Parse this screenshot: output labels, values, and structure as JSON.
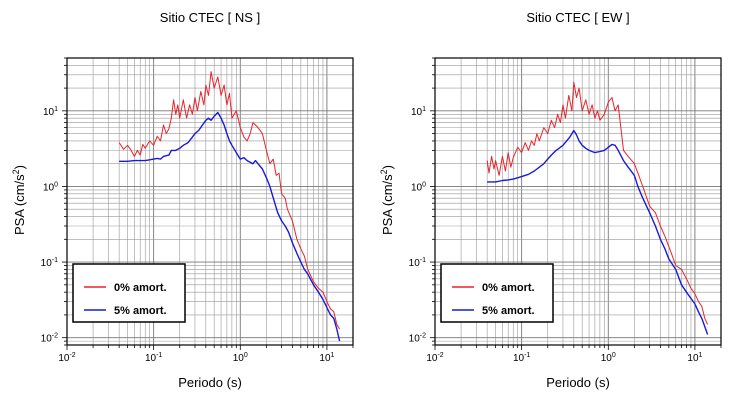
{
  "chart_data": [
    {
      "type": "line",
      "title": "Sitio CTEC [ NS ]",
      "xlabel": "Periodo (s)",
      "ylabel": "PSA (cm/s²)",
      "xscale": "log",
      "yscale": "log",
      "xlim": [
        0.01,
        20
      ],
      "ylim": [
        0.008,
        50
      ],
      "x_ticks": [
        {
          "base": "10",
          "exp": "-2",
          "value": 0.01
        },
        {
          "base": "10",
          "exp": "-1",
          "value": 0.1
        },
        {
          "base": "10",
          "exp": "0",
          "value": 1
        },
        {
          "base": "10",
          "exp": "1",
          "value": 10
        }
      ],
      "y_ticks": [
        {
          "base": "10",
          "exp": "-2",
          "value": 0.01
        },
        {
          "base": "10",
          "exp": "-1",
          "value": 0.1
        },
        {
          "base": "10",
          "exp": "0",
          "value": 1
        },
        {
          "base": "10",
          "exp": "1",
          "value": 10
        }
      ],
      "grid": true,
      "legend_position": "bottom-left",
      "series": [
        {
          "name": "0% amort.",
          "color": "#e8242a",
          "points": [
            [
              0.04,
              3.8
            ],
            [
              0.045,
              3.1
            ],
            [
              0.05,
              3.5
            ],
            [
              0.055,
              3.0
            ],
            [
              0.06,
              2.5
            ],
            [
              0.065,
              3.0
            ],
            [
              0.07,
              2.6
            ],
            [
              0.075,
              3.6
            ],
            [
              0.08,
              3.2
            ],
            [
              0.09,
              4.0
            ],
            [
              0.1,
              3.5
            ],
            [
              0.11,
              4.6
            ],
            [
              0.12,
              4.0
            ],
            [
              0.13,
              6.5
            ],
            [
              0.14,
              5.0
            ],
            [
              0.15,
              5.8
            ],
            [
              0.16,
              8.0
            ],
            [
              0.17,
              14.0
            ],
            [
              0.18,
              9.0
            ],
            [
              0.19,
              12.0
            ],
            [
              0.2,
              8.0
            ],
            [
              0.22,
              14.0
            ],
            [
              0.24,
              8.0
            ],
            [
              0.26,
              12.0
            ],
            [
              0.28,
              9.0
            ],
            [
              0.3,
              15.0
            ],
            [
              0.32,
              10.0
            ],
            [
              0.35,
              18.0
            ],
            [
              0.38,
              12.0
            ],
            [
              0.4,
              22.0
            ],
            [
              0.43,
              16.0
            ],
            [
              0.46,
              33.0
            ],
            [
              0.5,
              20.0
            ],
            [
              0.55,
              28.0
            ],
            [
              0.6,
              16.0
            ],
            [
              0.65,
              22.0
            ],
            [
              0.7,
              12.0
            ],
            [
              0.75,
              17.0
            ],
            [
              0.8,
              8.0
            ],
            [
              0.9,
              10.0
            ],
            [
              1.0,
              6.0
            ],
            [
              1.1,
              4.5
            ],
            [
              1.2,
              4.0
            ],
            [
              1.3,
              5.0
            ],
            [
              1.4,
              7.0
            ],
            [
              1.5,
              6.5
            ],
            [
              1.6,
              6.0
            ],
            [
              1.8,
              5.0
            ],
            [
              2.0,
              3.0
            ],
            [
              2.2,
              2.0
            ],
            [
              2.4,
              2.3
            ],
            [
              2.6,
              1.4
            ],
            [
              2.8,
              1.5
            ],
            [
              3.0,
              0.8
            ],
            [
              3.3,
              0.7
            ],
            [
              3.5,
              0.5
            ],
            [
              4.0,
              0.35
            ],
            [
              4.5,
              0.2
            ],
            [
              5.0,
              0.15
            ],
            [
              5.5,
              0.12
            ],
            [
              6.0,
              0.08
            ],
            [
              7.0,
              0.055
            ],
            [
              8.0,
              0.045
            ],
            [
              9.0,
              0.04
            ],
            [
              10.0,
              0.03
            ],
            [
              11.0,
              0.024
            ],
            [
              12.0,
              0.022
            ],
            [
              13.0,
              0.015
            ],
            [
              14.0,
              0.013
            ]
          ]
        },
        {
          "name": "5% amort.",
          "color": "#1a1ad8",
          "points": [
            [
              0.04,
              2.15
            ],
            [
              0.05,
              2.15
            ],
            [
              0.06,
              2.2
            ],
            [
              0.07,
              2.2
            ],
            [
              0.08,
              2.2
            ],
            [
              0.09,
              2.25
            ],
            [
              0.1,
              2.3
            ],
            [
              0.11,
              2.35
            ],
            [
              0.12,
              2.3
            ],
            [
              0.13,
              2.5
            ],
            [
              0.14,
              2.55
            ],
            [
              0.15,
              2.6
            ],
            [
              0.16,
              3.0
            ],
            [
              0.18,
              3.0
            ],
            [
              0.2,
              3.2
            ],
            [
              0.22,
              3.5
            ],
            [
              0.25,
              3.8
            ],
            [
              0.28,
              4.5
            ],
            [
              0.3,
              5.0
            ],
            [
              0.33,
              5.5
            ],
            [
              0.36,
              6.3
            ],
            [
              0.4,
              7.5
            ],
            [
              0.43,
              8.0
            ],
            [
              0.46,
              7.5
            ],
            [
              0.5,
              8.5
            ],
            [
              0.55,
              9.5
            ],
            [
              0.6,
              8.0
            ],
            [
              0.65,
              6.5
            ],
            [
              0.7,
              5.0
            ],
            [
              0.75,
              4.0
            ],
            [
              0.8,
              3.5
            ],
            [
              0.9,
              2.8
            ],
            [
              1.0,
              2.3
            ],
            [
              1.1,
              2.4
            ],
            [
              1.2,
              2.2
            ],
            [
              1.4,
              2.0
            ],
            [
              1.5,
              2.2
            ],
            [
              1.6,
              2.0
            ],
            [
              1.8,
              1.7
            ],
            [
              2.0,
              1.3
            ],
            [
              2.2,
              1.0
            ],
            [
              2.5,
              0.6
            ],
            [
              2.7,
              0.45
            ],
            [
              3.0,
              0.35
            ],
            [
              3.3,
              0.3
            ],
            [
              3.6,
              0.25
            ],
            [
              4.0,
              0.18
            ],
            [
              4.5,
              0.13
            ],
            [
              5.0,
              0.1
            ],
            [
              5.5,
              0.08
            ],
            [
              6.0,
              0.07
            ],
            [
              7.0,
              0.05
            ],
            [
              8.0,
              0.04
            ],
            [
              9.0,
              0.032
            ],
            [
              10.0,
              0.025
            ],
            [
              11.0,
              0.02
            ],
            [
              12.0,
              0.018
            ],
            [
              13.0,
              0.013
            ],
            [
              14.0,
              0.009
            ]
          ]
        }
      ]
    },
    {
      "type": "line",
      "title": "Sitio CTEC [ EW ]",
      "xlabel": "Periodo (s)",
      "ylabel": "PSA (cm/s²)",
      "xscale": "log",
      "yscale": "log",
      "xlim": [
        0.01,
        20
      ],
      "ylim": [
        0.008,
        50
      ],
      "x_ticks": [
        {
          "base": "10",
          "exp": "-2",
          "value": 0.01
        },
        {
          "base": "10",
          "exp": "-1",
          "value": 0.1
        },
        {
          "base": "10",
          "exp": "0",
          "value": 1
        },
        {
          "base": "10",
          "exp": "1",
          "value": 10
        }
      ],
      "y_ticks": [
        {
          "base": "10",
          "exp": "-2",
          "value": 0.01
        },
        {
          "base": "10",
          "exp": "-1",
          "value": 0.1
        },
        {
          "base": "10",
          "exp": "0",
          "value": 1
        },
        {
          "base": "10",
          "exp": "1",
          "value": 10
        }
      ],
      "grid": true,
      "legend_position": "bottom-left",
      "series": [
        {
          "name": "0% amort.",
          "color": "#e8242a",
          "points": [
            [
              0.04,
              2.2
            ],
            [
              0.042,
              1.5
            ],
            [
              0.045,
              2.5
            ],
            [
              0.048,
              1.7
            ],
            [
              0.05,
              2.2
            ],
            [
              0.055,
              1.4
            ],
            [
              0.06,
              2.5
            ],
            [
              0.065,
              1.6
            ],
            [
              0.07,
              2.8
            ],
            [
              0.075,
              1.8
            ],
            [
              0.08,
              2.4
            ],
            [
              0.09,
              3.3
            ],
            [
              0.1,
              2.8
            ],
            [
              0.11,
              3.8
            ],
            [
              0.12,
              3.0
            ],
            [
              0.13,
              4.0
            ],
            [
              0.14,
              3.5
            ],
            [
              0.15,
              5.0
            ],
            [
              0.16,
              4.0
            ],
            [
              0.18,
              6.0
            ],
            [
              0.2,
              5.0
            ],
            [
              0.22,
              7.5
            ],
            [
              0.24,
              6.0
            ],
            [
              0.26,
              9.0
            ],
            [
              0.28,
              7.0
            ],
            [
              0.3,
              12.0
            ],
            [
              0.32,
              8.0
            ],
            [
              0.35,
              16.0
            ],
            [
              0.38,
              10.0
            ],
            [
              0.4,
              24.0
            ],
            [
              0.43,
              15.0
            ],
            [
              0.46,
              20.0
            ],
            [
              0.5,
              10.0
            ],
            [
              0.55,
              14.0
            ],
            [
              0.6,
              9.0
            ],
            [
              0.65,
              12.0
            ],
            [
              0.7,
              8.0
            ],
            [
              0.75,
              10.0
            ],
            [
              0.8,
              7.5
            ],
            [
              0.9,
              9.0
            ],
            [
              1.0,
              13.0
            ],
            [
              1.1,
              15.0
            ],
            [
              1.2,
              10.0
            ],
            [
              1.3,
              12.0
            ],
            [
              1.5,
              3.0
            ],
            [
              1.7,
              2.5
            ],
            [
              2.0,
              2.0
            ],
            [
              2.2,
              1.5
            ],
            [
              2.5,
              1.0
            ],
            [
              3.0,
              0.55
            ],
            [
              3.5,
              0.45
            ],
            [
              4.0,
              0.3
            ],
            [
              4.5,
              0.22
            ],
            [
              5.0,
              0.16
            ],
            [
              5.5,
              0.12
            ],
            [
              6.0,
              0.09
            ],
            [
              7.0,
              0.08
            ],
            [
              8.0,
              0.06
            ],
            [
              9.0,
              0.045
            ],
            [
              10.0,
              0.038
            ],
            [
              11.0,
              0.03
            ],
            [
              12.0,
              0.026
            ],
            [
              13.0,
              0.018
            ],
            [
              14.0,
              0.015
            ]
          ]
        },
        {
          "name": "5% amort.",
          "color": "#1a1ad8",
          "points": [
            [
              0.04,
              1.15
            ],
            [
              0.05,
              1.15
            ],
            [
              0.06,
              1.2
            ],
            [
              0.07,
              1.22
            ],
            [
              0.08,
              1.25
            ],
            [
              0.09,
              1.3
            ],
            [
              0.1,
              1.35
            ],
            [
              0.12,
              1.45
            ],
            [
              0.14,
              1.6
            ],
            [
              0.16,
              1.8
            ],
            [
              0.18,
              2.0
            ],
            [
              0.2,
              2.3
            ],
            [
              0.22,
              2.6
            ],
            [
              0.25,
              3.0
            ],
            [
              0.28,
              3.3
            ],
            [
              0.3,
              3.5
            ],
            [
              0.33,
              4.0
            ],
            [
              0.36,
              4.5
            ],
            [
              0.4,
              5.5
            ],
            [
              0.43,
              4.8
            ],
            [
              0.46,
              4.0
            ],
            [
              0.5,
              3.5
            ],
            [
              0.55,
              3.2
            ],
            [
              0.6,
              3.0
            ],
            [
              0.7,
              2.8
            ],
            [
              0.8,
              2.9
            ],
            [
              0.9,
              3.0
            ],
            [
              1.0,
              3.3
            ],
            [
              1.1,
              3.6
            ],
            [
              1.2,
              3.5
            ],
            [
              1.3,
              3.0
            ],
            [
              1.5,
              2.2
            ],
            [
              1.7,
              1.8
            ],
            [
              2.0,
              1.4
            ],
            [
              2.2,
              1.0
            ],
            [
              2.5,
              0.7
            ],
            [
              3.0,
              0.45
            ],
            [
              3.5,
              0.3
            ],
            [
              4.0,
              0.2
            ],
            [
              4.5,
              0.15
            ],
            [
              5.0,
              0.11
            ],
            [
              6.0,
              0.08
            ],
            [
              7.0,
              0.05
            ],
            [
              8.0,
              0.04
            ],
            [
              9.0,
              0.033
            ],
            [
              10.0,
              0.028
            ],
            [
              11.0,
              0.022
            ],
            [
              12.0,
              0.018
            ],
            [
              13.0,
              0.014
            ],
            [
              14.0,
              0.011
            ]
          ]
        }
      ]
    }
  ]
}
